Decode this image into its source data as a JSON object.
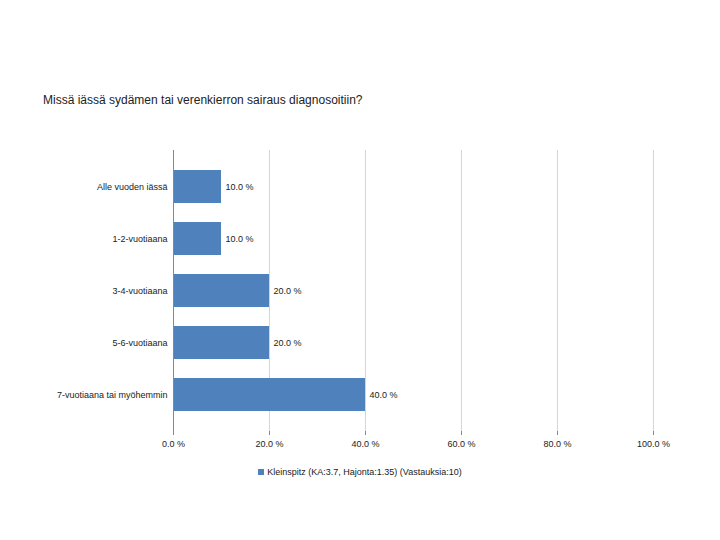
{
  "chart_data": {
    "type": "bar",
    "orientation": "horizontal",
    "title": "Missä iässä sydämen tai verenkierron sairaus diagnosoitiin?",
    "categories": [
      "Alle vuoden iässä",
      "1-2-vuotiaana",
      "3-4-vuotiaana",
      "5-6-vuotiaana",
      "7-vuotiaana tai myöhemmin"
    ],
    "series": [
      {
        "name": "Kleinspitz (KA:3.7, Hajonta:1.35) (Vastauksia:10)",
        "color": "#4f81bd",
        "values": [
          10,
          10,
          20,
          20,
          40
        ],
        "value_labels": [
          "10.0 %",
          "10.0 %",
          "20.0 %",
          "20.0 %",
          "40.0 %"
        ]
      }
    ],
    "xlim": [
      0,
      100
    ],
    "xticks": [
      {
        "value": 0,
        "label": "0.0 %"
      },
      {
        "value": 20,
        "label": "20.0 %"
      },
      {
        "value": 40,
        "label": "40.0 %"
      },
      {
        "value": 60,
        "label": "60.0 %"
      },
      {
        "value": 80,
        "label": "80.0 %"
      },
      {
        "value": 100,
        "label": "100.0 %"
      }
    ],
    "grid": true,
    "data_labels": true,
    "legend": "bottom"
  }
}
